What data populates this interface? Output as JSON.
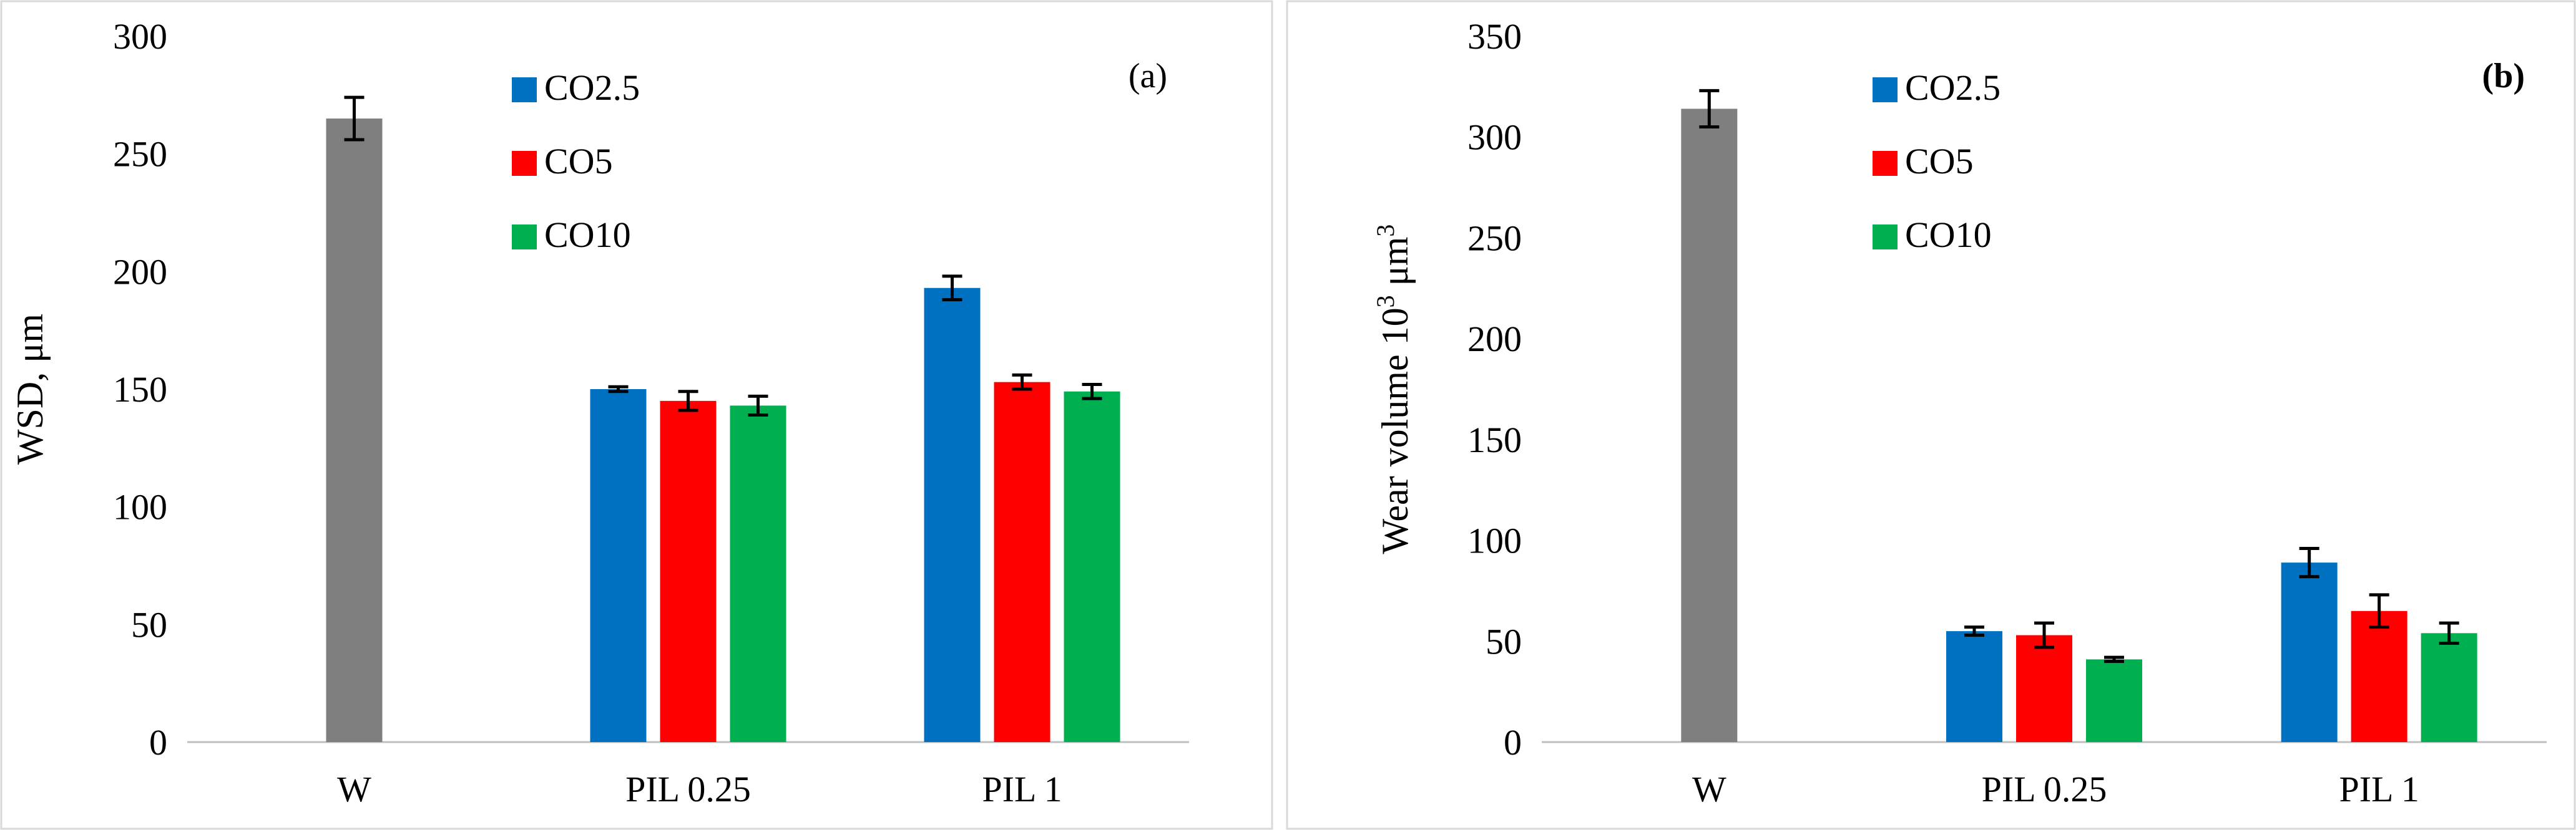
{
  "chart_data": [
    {
      "type": "bar",
      "panel_tag": "(a)",
      "title": "",
      "xlabel": "",
      "ylabel": "WSD, μm",
      "ylim": [
        0,
        300
      ],
      "yticks": [
        0,
        50,
        100,
        150,
        200,
        250,
        300
      ],
      "categories": [
        "W",
        "PIL 0.25",
        "PIL 1"
      ],
      "legend_position": "top-center",
      "grid": false,
      "series": [
        {
          "name": "W",
          "legend": false,
          "color": "#7F7F7F",
          "values": [
            265,
            null,
            null
          ],
          "errors": [
            9,
            null,
            null
          ]
        },
        {
          "name": "CO2.5",
          "legend": true,
          "color": "#0070C0",
          "values": [
            null,
            150,
            193
          ],
          "errors": [
            null,
            1,
            5
          ]
        },
        {
          "name": "CO5",
          "legend": true,
          "color": "#FF0000",
          "values": [
            null,
            145,
            153
          ],
          "errors": [
            null,
            4,
            3
          ]
        },
        {
          "name": "CO10",
          "legend": true,
          "color": "#00B050",
          "values": [
            null,
            143,
            149
          ],
          "errors": [
            null,
            4,
            3
          ]
        }
      ]
    },
    {
      "type": "bar",
      "panel_tag": "(b)",
      "title": "",
      "xlabel": "",
      "ylabel": "Wear volume 10³ μm³",
      "ylim": [
        0,
        350
      ],
      "yticks": [
        0,
        50,
        100,
        150,
        200,
        250,
        300,
        350
      ],
      "categories": [
        "W",
        "PIL 0.25",
        "PIL 1"
      ],
      "legend_position": "top-center",
      "grid": false,
      "series": [
        {
          "name": "W",
          "legend": false,
          "color": "#7F7F7F",
          "values": [
            314,
            null,
            null
          ],
          "errors": [
            9,
            null,
            null
          ]
        },
        {
          "name": "CO2.5",
          "legend": true,
          "color": "#0070C0",
          "values": [
            null,
            55,
            89
          ],
          "errors": [
            null,
            2,
            7
          ]
        },
        {
          "name": "CO5",
          "legend": true,
          "color": "#FF0000",
          "values": [
            null,
            53,
            65
          ],
          "errors": [
            null,
            6,
            8
          ]
        },
        {
          "name": "CO10",
          "legend": true,
          "color": "#00B050",
          "values": [
            null,
            41,
            54
          ],
          "errors": [
            null,
            1,
            5
          ]
        }
      ]
    }
  ]
}
